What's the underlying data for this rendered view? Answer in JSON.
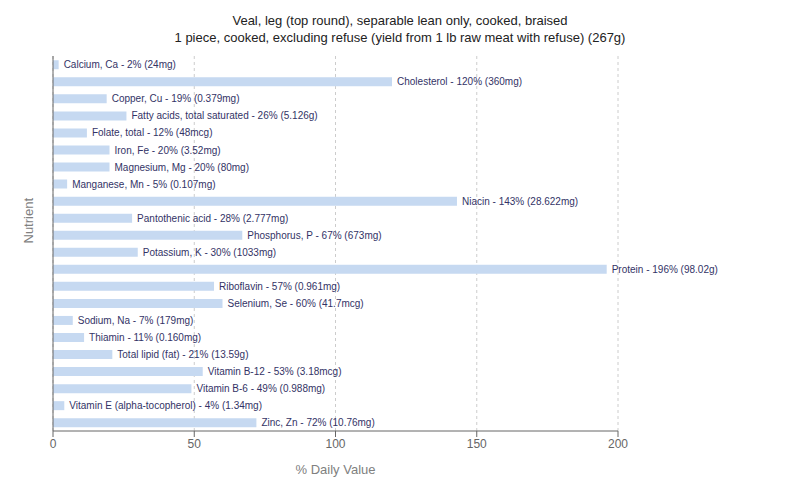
{
  "chart_data": {
    "type": "bar",
    "orientation": "horizontal",
    "title": "Veal, leg (top round), separable lean only, cooked, braised\n1 piece, cooked, excluding refuse (yield from 1 lb raw meat with refuse) (267g)",
    "xlabel": "% Daily Value",
    "ylabel": "Nutrient",
    "categories": [
      "Calcium, Ca - 2% (24mg)",
      "Cholesterol - 120% (360mg)",
      "Copper, Cu - 19% (0.379mg)",
      "Fatty acids, total saturated - 26% (5.126g)",
      "Folate, total - 12% (48mcg)",
      "Iron, Fe - 20% (3.52mg)",
      "Magnesium, Mg - 20% (80mg)",
      "Manganese, Mn - 5% (0.107mg)",
      "Niacin - 143% (28.622mg)",
      "Pantothenic acid - 28% (2.777mg)",
      "Phosphorus, P - 67% (673mg)",
      "Potassium, K - 30% (1033mg)",
      "Protein - 196% (98.02g)",
      "Riboflavin - 57% (0.961mg)",
      "Selenium, Se - 60% (41.7mcg)",
      "Sodium, Na - 7% (179mg)",
      "Thiamin - 11% (0.160mg)",
      "Total lipid (fat) - 21% (13.59g)",
      "Vitamin B-12 - 53% (3.18mcg)",
      "Vitamin B-6 - 49% (0.988mg)",
      "Vitamin E (alpha-tocopherol) - 4% (1.34mg)",
      "Zinc, Zn - 72% (10.76mg)"
    ],
    "values": [
      2,
      120,
      19,
      26,
      12,
      20,
      20,
      5,
      143,
      28,
      67,
      30,
      196,
      57,
      60,
      7,
      11,
      21,
      53,
      49,
      4,
      72
    ],
    "color": "#c6d9f1",
    "xlim": [
      0,
      200
    ],
    "xticks": [
      0,
      50,
      100,
      150,
      200
    ],
    "grid": true,
    "tick_labels": "x"
  }
}
